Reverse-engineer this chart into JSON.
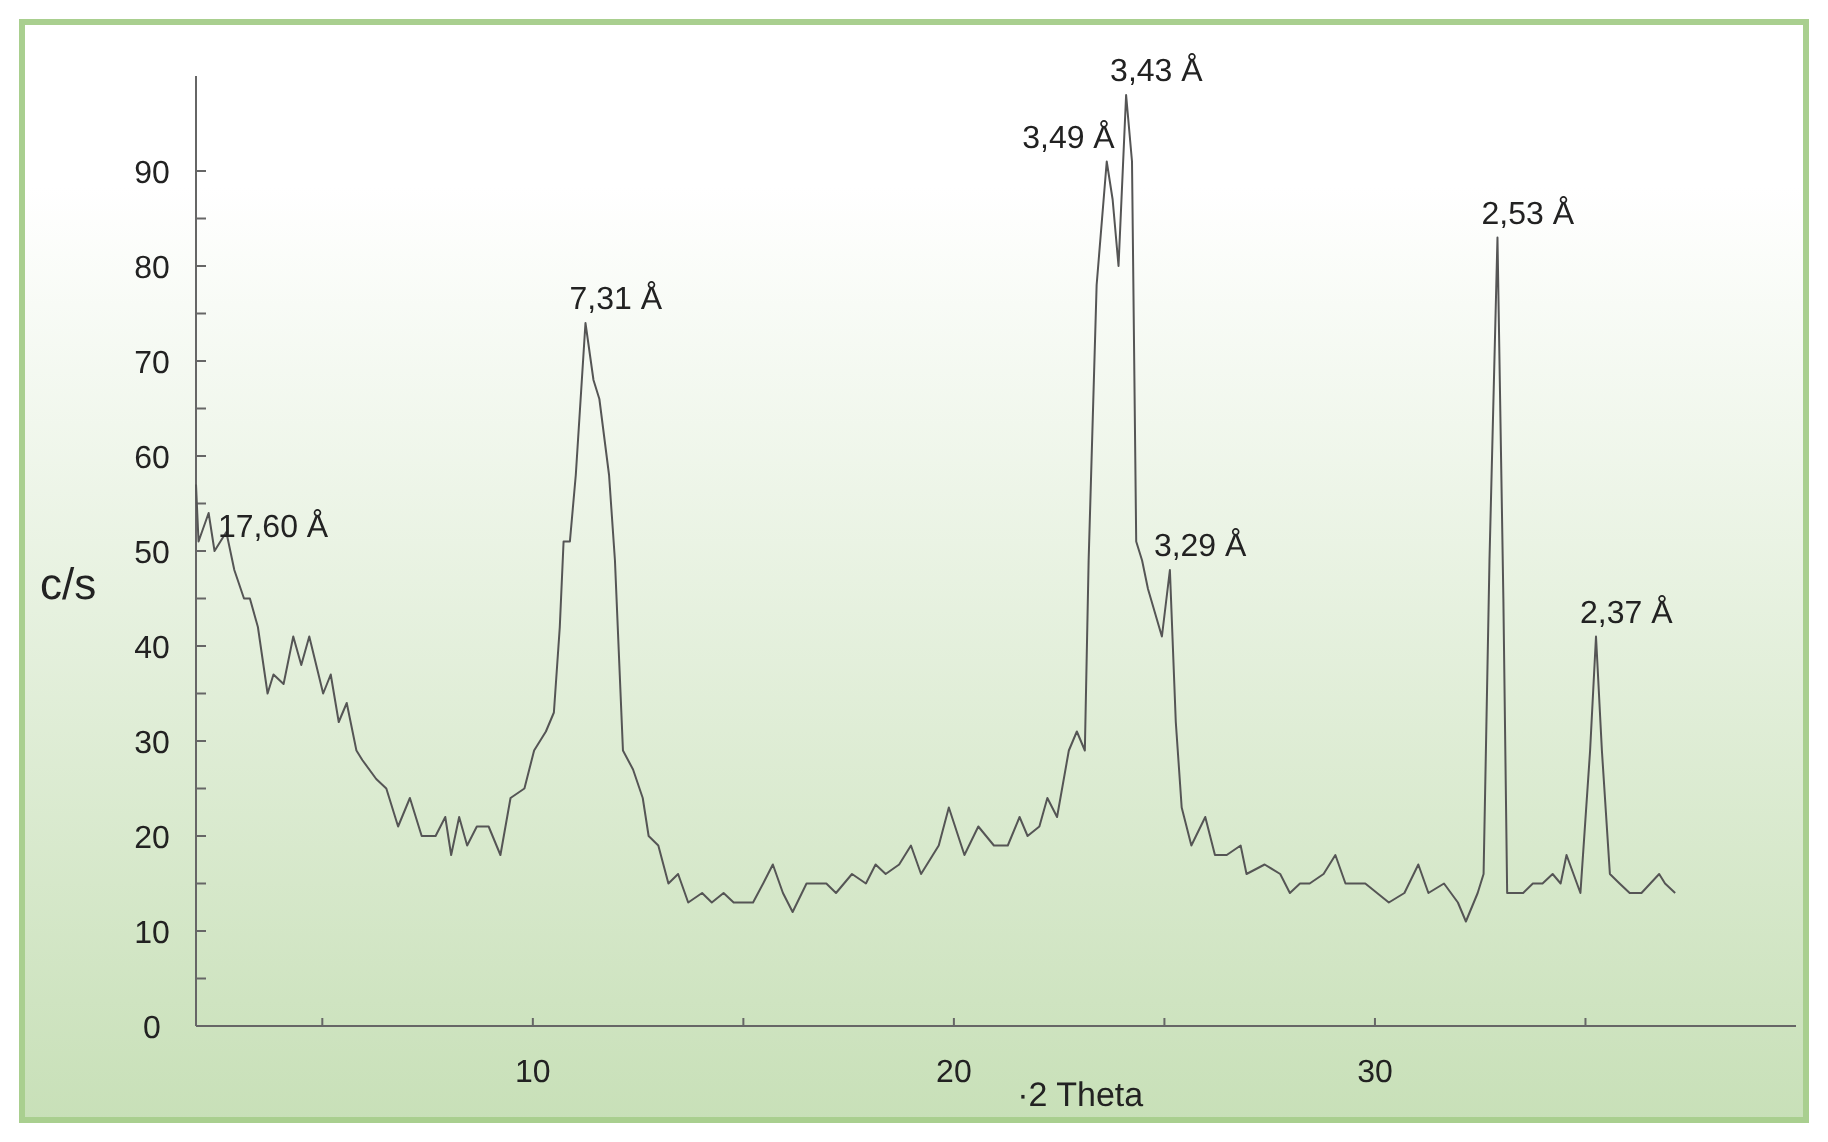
{
  "chart_data": {
    "type": "line",
    "xlabel": "·2 Theta",
    "ylabel": "c/s",
    "xlim": [
      2,
      40
    ],
    "ylim": [
      0,
      100
    ],
    "xticks": [
      {
        "value": 5,
        "label": null
      },
      10,
      {
        "value": 15,
        "label": null
      },
      20,
      {
        "value": 25,
        "label": null
      },
      30,
      {
        "value": 35,
        "label": null
      }
    ],
    "yticks": [
      0,
      {
        "value": 5,
        "label": null
      },
      10,
      {
        "value": 15,
        "label": null
      },
      20,
      {
        "value": 25,
        "label": null
      },
      30,
      {
        "value": 35,
        "label": null
      },
      40,
      {
        "value": 45,
        "label": null
      },
      50,
      {
        "value": 55,
        "label": null
      },
      60,
      {
        "value": 65,
        "label": null
      },
      70,
      {
        "value": 75,
        "label": null
      },
      80,
      {
        "value": 85,
        "label": null
      },
      90
    ],
    "grid": false,
    "marker": "none",
    "line_style": "solid",
    "series": [
      {
        "color": "#555555",
        "x": [
          2.0,
          2.06,
          2.3,
          2.44,
          2.72,
          2.91,
          3.14,
          3.28,
          3.47,
          3.7,
          3.84,
          4.08,
          4.31,
          4.5,
          4.69,
          5.02,
          5.2,
          5.39,
          5.58,
          5.81,
          5.95,
          6.28,
          6.52,
          6.8,
          7.08,
          7.36,
          7.69,
          7.92,
          8.06,
          8.25,
          8.44,
          8.67,
          8.95,
          9.23,
          9.47,
          9.8,
          10.03,
          10.31,
          10.5,
          10.64,
          10.73,
          10.88,
          11.02,
          11.25,
          11.44,
          11.58,
          11.81,
          11.95,
          12.14,
          12.38,
          12.61,
          12.75,
          12.98,
          13.22,
          13.45,
          13.69,
          14.02,
          14.25,
          14.53,
          14.77,
          15.23,
          15.47,
          15.7,
          15.94,
          16.17,
          16.5,
          16.97,
          17.2,
          17.58,
          17.91,
          18.14,
          18.38,
          18.7,
          18.98,
          19.22,
          19.64,
          19.88,
          20.25,
          20.58,
          20.95,
          21.28,
          21.56,
          21.75,
          22.03,
          22.22,
          22.45,
          22.73,
          22.92,
          23.11,
          23.2,
          23.39,
          23.63,
          23.77,
          23.91,
          24.09,
          24.23,
          24.33,
          24.47,
          24.61,
          24.94,
          25.13,
          25.27,
          25.41,
          25.64,
          25.97,
          26.2,
          26.48,
          26.81,
          26.95,
          27.38,
          27.75,
          27.98,
          28.22,
          28.45,
          28.78,
          29.06,
          29.3,
          29.77,
          30.33,
          30.7,
          31.03,
          31.27,
          31.64,
          31.97,
          32.16,
          32.44,
          32.58,
          32.72,
          32.91,
          33.05,
          33.14,
          33.52,
          33.75,
          33.98,
          34.22,
          34.41,
          34.55,
          34.88,
          35.11,
          35.25,
          35.39,
          35.58,
          35.81,
          36.05,
          36.33,
          36.75,
          36.89,
          37.13
        ],
        "values": [
          57,
          51,
          54,
          50,
          52,
          48,
          45,
          45,
          42,
          35,
          37,
          36,
          41,
          38,
          41,
          35,
          37,
          32,
          34,
          29,
          28,
          26,
          25,
          21,
          24,
          20,
          20,
          22,
          18,
          22,
          19,
          21,
          21,
          18,
          24,
          25,
          29,
          31,
          33,
          42,
          51,
          51,
          58,
          74,
          68,
          66,
          58,
          49,
          29,
          27,
          24,
          20,
          19,
          15,
          16,
          13,
          14,
          13,
          14,
          13,
          13,
          15,
          17,
          14,
          12,
          15,
          15,
          14,
          16,
          15,
          17,
          16,
          17,
          19,
          16,
          19,
          23,
          18,
          21,
          19,
          19,
          22,
          20,
          21,
          24,
          22,
          29,
          31,
          29,
          49,
          78,
          91,
          87,
          80,
          98,
          91,
          51,
          49,
          46,
          41,
          48,
          32,
          23,
          19,
          22,
          18,
          18,
          19,
          16,
          17,
          16,
          14,
          15,
          15,
          16,
          18,
          15,
          15,
          13,
          14,
          17,
          14,
          15,
          13,
          11,
          14,
          16,
          49,
          83,
          45,
          14,
          14,
          15,
          15,
          16,
          15,
          18,
          14,
          29,
          41,
          29,
          16,
          15,
          14,
          14,
          16,
          15,
          14
        ]
      }
    ],
    "annotations": [
      {
        "text": "17,60 Å",
        "x": 2.9,
        "y": 50
      },
      {
        "text": "7,31 Å",
        "x": 11.25,
        "y": 74
      },
      {
        "text": "3,49 Å",
        "x": 23.63,
        "y": 91
      },
      {
        "text": "3,43 Å",
        "x": 24.09,
        "y": 98
      },
      {
        "text": "3,29 Å",
        "x": 25.13,
        "y": 48
      },
      {
        "text": "2,53 Å",
        "x": 32.91,
        "y": 83
      },
      {
        "text": "2,37 Å",
        "x": 35.25,
        "y": 41
      }
    ]
  }
}
